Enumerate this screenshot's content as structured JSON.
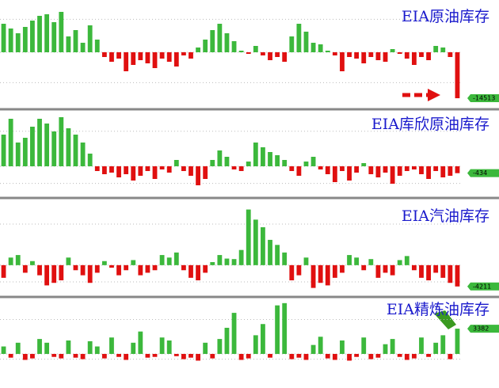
{
  "chart_data": [
    {
      "type": "bar",
      "title": "EIA原油库存",
      "ylim": [
        -16000,
        16000
      ],
      "positive_color": "#3cb83c",
      "negative_color": "#e01010",
      "values": [
        9000,
        7500,
        6000,
        8000,
        10000,
        11500,
        12000,
        9500,
        12750,
        5000,
        7000,
        3000,
        8500,
        4000,
        -1500,
        -3000,
        -2000,
        -6000,
        -4000,
        -2500,
        -3500,
        -5000,
        -2000,
        -3000,
        -4500,
        -1000,
        -2000,
        1500,
        4000,
        7000,
        9000,
        6000,
        3500,
        500,
        -500,
        2000,
        -1000,
        -2500,
        -1500,
        -3000,
        5000,
        9000,
        6500,
        3000,
        2500,
        500,
        -1000,
        -6000,
        -1500,
        -2000,
        -3500,
        -1500,
        -2500,
        -3000,
        1000,
        -500,
        -2000,
        -4000,
        -1500,
        -2500,
        2000,
        1500,
        -1500,
        -14513
      ]
    },
    {
      "type": "bar",
      "title": "EIA库欣原油库存",
      "ylim": [
        -1800,
        3400
      ],
      "positive_color": "#3cb83c",
      "negative_color": "#e01010",
      "values": [
        2000,
        3000,
        1500,
        1800,
        2500,
        3000,
        2700,
        2200,
        3100,
        2400,
        2000,
        1500,
        800,
        -300,
        -500,
        -400,
        -700,
        -500,
        -900,
        -600,
        -300,
        -800,
        -200,
        -400,
        400,
        -300,
        -600,
        -1200,
        -800,
        400,
        1000,
        600,
        -200,
        -300,
        300,
        1500,
        1200,
        900,
        700,
        400,
        -300,
        -600,
        300,
        600,
        -200,
        -500,
        -1000,
        -300,
        -900,
        -400,
        200,
        -500,
        -700,
        -400,
        -1100,
        -600,
        -300,
        -200,
        -500,
        -800,
        -300,
        -700,
        -600,
        -434
      ]
    },
    {
      "type": "bar",
      "title": "EIA汽油库存",
      "ylim": [
        -5500,
        12500
      ],
      "positive_color": "#3cb83c",
      "negative_color": "#e01010",
      "values": [
        -2500,
        1500,
        2000,
        -1500,
        800,
        -2000,
        -4000,
        -3500,
        -3000,
        1500,
        -1000,
        -2000,
        -3500,
        -1500,
        800,
        -500,
        -2000,
        -1000,
        1000,
        -2000,
        -1500,
        -1000,
        2000,
        1500,
        2500,
        -1000,
        -2500,
        -3000,
        -1500,
        600,
        2000,
        1300,
        1200,
        3000,
        11000,
        9000,
        7500,
        5000,
        4000,
        2500,
        -3000,
        -2000,
        1500,
        -4500,
        -3500,
        -4000,
        -2500,
        -1500,
        2000,
        1500,
        -1000,
        1200,
        -2500,
        -1500,
        -2000,
        1000,
        1800,
        -1000,
        -2500,
        -3000,
        -1500,
        -2500,
        -3500,
        -4211
      ]
    },
    {
      "type": "bar",
      "title": "EIA精炼油库存",
      "ylim": [
        -1170,
        7100
      ],
      "positive_color": "#3cb83c",
      "negative_color": "#e01010",
      "values": [
        1000,
        -500,
        1500,
        -800,
        -600,
        2000,
        1500,
        -400,
        -600,
        1800,
        -500,
        -700,
        1700,
        1000,
        -600,
        2200,
        -400,
        -800,
        1500,
        3000,
        -500,
        -400,
        2200,
        1800,
        -300,
        -700,
        -500,
        -900,
        1500,
        -600,
        2000,
        3500,
        5500,
        -800,
        -600,
        2500,
        4000,
        -500,
        6500,
        6800,
        -700,
        -500,
        -800,
        1200,
        2300,
        -600,
        -800,
        1800,
        -900,
        -400,
        2200,
        -700,
        -500,
        1300,
        2000,
        -400,
        -800,
        -600,
        2200,
        -400,
        1500,
        2500,
        -700,
        3382
      ]
    }
  ]
}
